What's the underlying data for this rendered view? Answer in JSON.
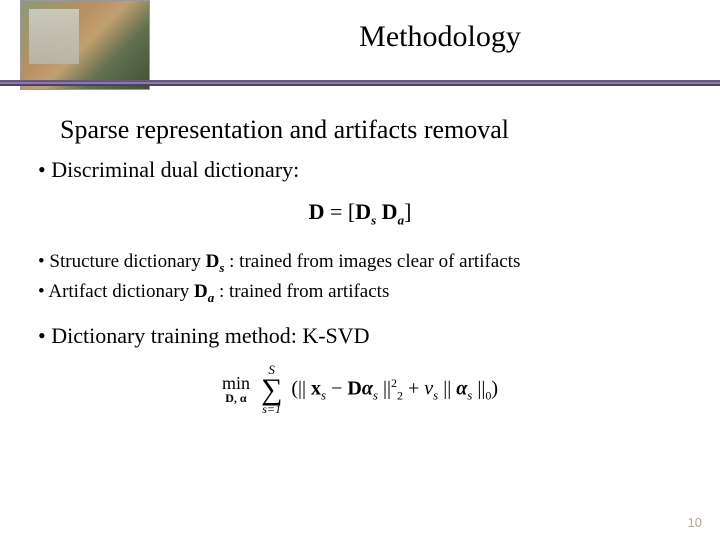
{
  "header": {
    "title": "Methodology",
    "divider_color": "#4a3a6a"
  },
  "subtitle": "Sparse representation and artifacts removal",
  "bullets": {
    "b1": "Discriminal dual dictionary:",
    "b2_pre": "Structure dictionary ",
    "b2_sym": "D",
    "b2_sub": "s",
    "b2_post": " : trained from images clear of artifacts",
    "b3_pre": "Artifact dictionary ",
    "b3_sym": "D",
    "b3_sub": "a",
    "b3_post": " : trained from artifacts",
    "b4": "Dictionary training method: K-SVD"
  },
  "eq1": {
    "D": "D",
    "eq": " = [",
    "Ds": "D",
    "s": "s",
    "sp": "  ",
    "Da": "D",
    "a": "a",
    "close": "]"
  },
  "eq2": {
    "min": "min",
    "min_sub": "D, α",
    "sum_top": "S",
    "sum_bot": "s=1",
    "open": "(|| ",
    "x": "x",
    "xs": "s",
    "minus": " − ",
    "D": "D",
    "alpha": "α",
    "alphas": "s",
    "norm1": " ||",
    "two": "2",
    "sq": "2",
    "plus": " + ",
    "nu": "ν",
    "nus": "s",
    "sp": " || ",
    "alpha2": "α",
    "alphas2": "s",
    "norm2": " ||",
    "zero": "0",
    "close": ")"
  },
  "page_number": "10"
}
